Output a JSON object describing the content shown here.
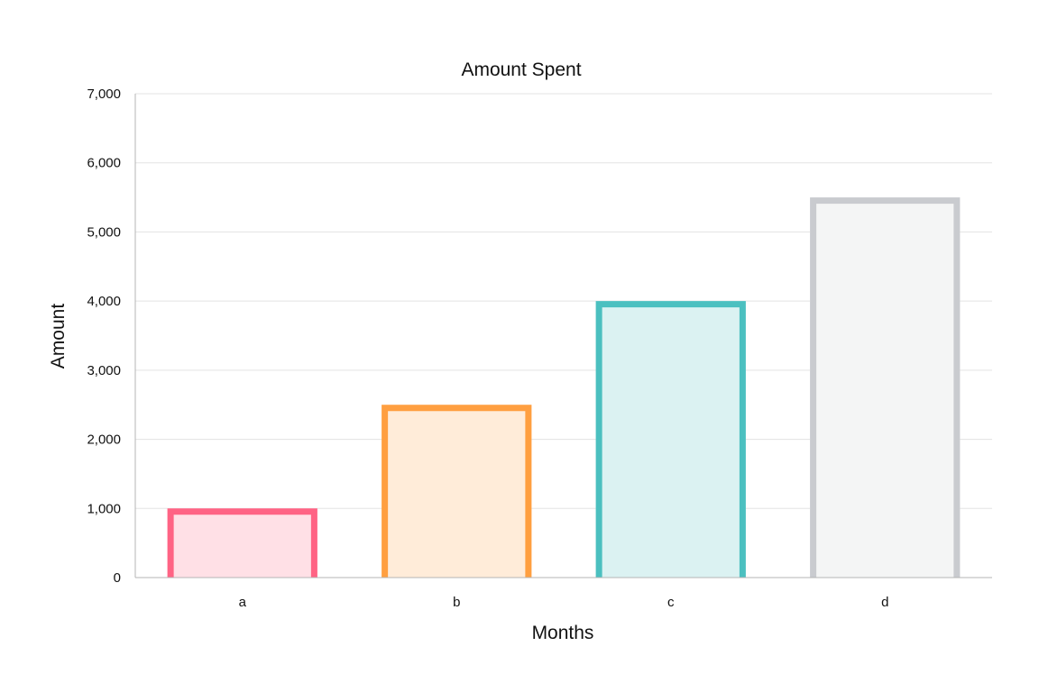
{
  "chart_data": {
    "type": "bar",
    "title": "Amount Spent",
    "xlabel": "Months",
    "ylabel": "Amount",
    "categories": [
      "a",
      "b",
      "c",
      "d"
    ],
    "series": [
      {
        "values": [
          1000,
          2500,
          4000,
          5500
        ],
        "colors": {
          "border": [
            "#ff6384",
            "#ff9f40",
            "#4bc0c0",
            "#c9cbcf"
          ],
          "fill": [
            "#ffe0e6",
            "#ffecd9",
            "#dbf2f2",
            "#f4f5f5"
          ]
        }
      }
    ],
    "ylim": [
      0,
      7000
    ],
    "y_ticks": [
      "0",
      "1,000",
      "2,000",
      "3,000",
      "4,000",
      "5,000",
      "6,000",
      "7,000"
    ],
    "y_tick_values": [
      0,
      1000,
      2000,
      3000,
      4000,
      5000,
      6000,
      7000
    ],
    "grid": true,
    "legend": "none"
  }
}
